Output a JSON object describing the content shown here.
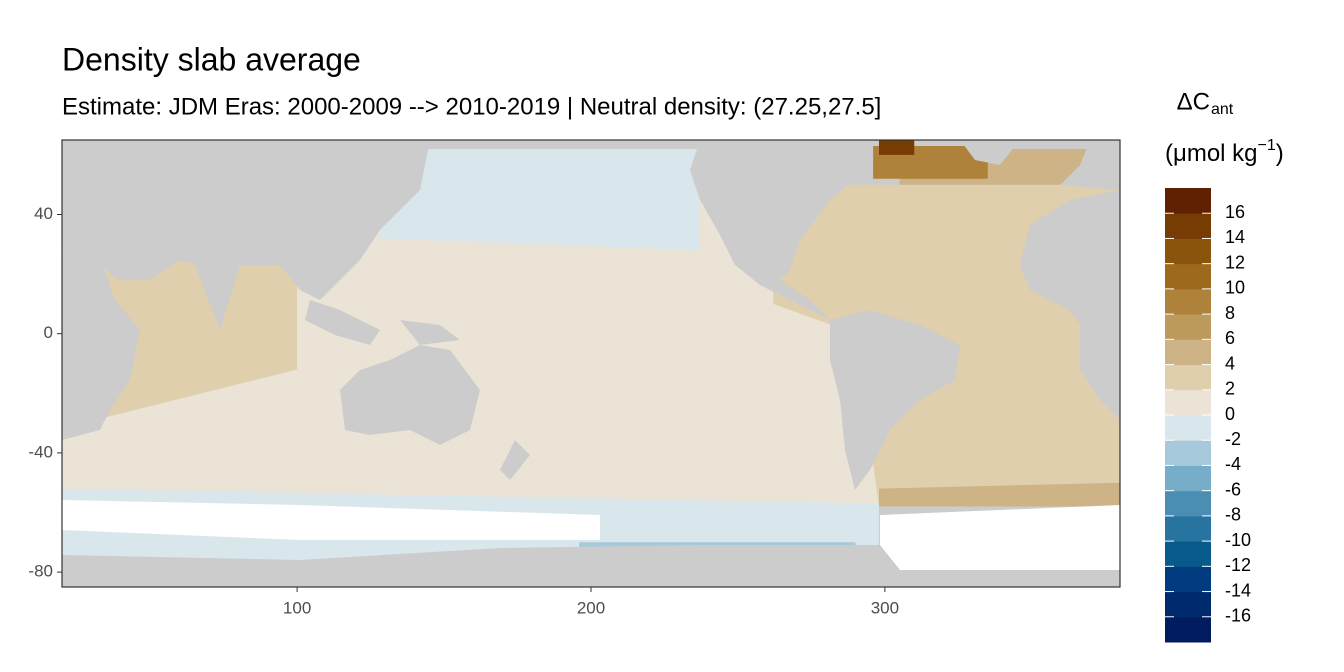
{
  "chart_data": {
    "type": "map",
    "title": "Density slab average",
    "subtitle": "Estimate: JDM Eras: 2000-2009 --> 2010-2019 | Neutral density: (27.25,27.5]",
    "legend_title": {
      "main": "ΔC",
      "sub": "ant"
    },
    "legend_unit": {
      "before": "(μmol kg",
      "sup": "−1",
      "after": ")"
    },
    "xlim": [
      20,
      380
    ],
    "ylim": [
      -85,
      65
    ],
    "xticks": [
      100,
      200,
      300
    ],
    "yticks": [
      40,
      0,
      -40,
      -80
    ],
    "colorbar": {
      "limits": [
        -18,
        18
      ],
      "ticks": [
        16,
        14,
        12,
        10,
        8,
        6,
        4,
        2,
        0,
        -2,
        -4,
        -6,
        -8,
        -10,
        -12,
        -14,
        -16
      ],
      "colors": [
        "#001c5e",
        "#002a6e",
        "#003c7f",
        "#075a8c",
        "#2874a0",
        "#4a8fb3",
        "#76adc9",
        "#a7c9dc",
        "#d9e6ec",
        "#ebe4d6",
        "#dfcfac",
        "#cdb385",
        "#bc9a5c",
        "#ae823a",
        "#9d6a1d",
        "#8b540c",
        "#773c04",
        "#5f2102"
      ]
    },
    "regions": [
      {
        "value": 1,
        "lon": [
          20,
          298,
          298,
          20
        ],
        "lat": [
          -62,
          -62,
          45,
          45
        ]
      },
      {
        "value": 3,
        "lon": [
          35,
          100,
          100,
          35
        ],
        "lat": [
          28,
          28,
          -12,
          -28
        ]
      },
      {
        "value": 3,
        "lon": [
          298,
          380,
          380,
          262,
          262,
          290
        ],
        "lat": [
          -58,
          -58,
          50,
          50,
          10,
          0
        ]
      },
      {
        "value": -1,
        "lon": [
          128,
          237,
          237,
          128
        ],
        "lat": [
          62,
          62,
          28,
          32
        ]
      },
      {
        "value": -1,
        "lon": [
          20,
          298,
          298,
          20
        ],
        "lat": [
          -80,
          -80,
          -57,
          -52
        ]
      },
      {
        "value": -3,
        "lon": [
          196,
          290,
          290,
          196
        ],
        "lat": [
          -74,
          -74,
          -70,
          -70
        ]
      },
      {
        "value": 5,
        "lon": [
          298,
          380,
          380,
          298
        ],
        "lat": [
          -58,
          -58,
          -50,
          -52
        ]
      },
      {
        "value": 5,
        "lon": [
          305,
          380,
          380,
          340,
          305
        ],
        "lat": [
          50,
          50,
          62,
          62,
          55
        ]
      },
      {
        "value": 9,
        "lon": [
          296,
          335,
          335,
          296
        ],
        "lat": [
          63,
          63,
          52,
          52
        ]
      },
      {
        "value": 15,
        "lon": [
          298,
          310,
          310,
          298
        ],
        "lat": [
          65,
          65,
          60,
          60
        ]
      }
    ]
  }
}
